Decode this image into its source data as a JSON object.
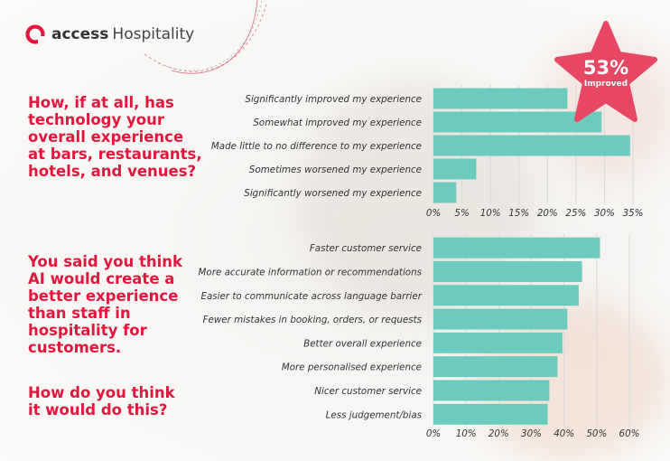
{
  "brand": {
    "word1": "access",
    "word2": "Hospitality"
  },
  "questions": {
    "q1": "How, if at all, has technology your overall experience at bars, restaurants, hotels, and venues?",
    "q2": "You said you think AI would create a better experience than staff in hospitality for customers.",
    "q3": "How do you think it would do this?"
  },
  "badge": {
    "value": "53%",
    "label": "Improved"
  },
  "colors": {
    "bar": "#6ccbbe",
    "accent": "#e3173e",
    "star": "#e84763",
    "text": "#333333"
  },
  "chart_data": [
    {
      "type": "bar",
      "orientation": "horizontal",
      "categories": [
        "Significantly improved my experience",
        "Somewhat improved my experience",
        "Made little to no difference to my experience",
        "Sometimes worsened my experience",
        "Significantly worsened my experience"
      ],
      "values": [
        23.5,
        29.5,
        34.5,
        7.5,
        4
      ],
      "xlim": [
        0,
        35
      ],
      "ticks": [
        0,
        5,
        10,
        15,
        20,
        25,
        30,
        35
      ],
      "tick_labels": [
        "0%",
        "5%",
        "10%",
        "15%",
        "20%",
        "25%",
        "30%",
        "35%"
      ],
      "grid": true
    },
    {
      "type": "bar",
      "orientation": "horizontal",
      "categories": [
        "Faster customer service",
        "More accurate information or recommendations",
        "Easier to communicate across language barrier",
        "Fewer mistakes in booking, orders, or requests",
        "Better overall experience",
        "More personalised experience",
        "Nicer customer service",
        "Less judgement/bias"
      ],
      "values": [
        51,
        45.5,
        44.5,
        41,
        39.5,
        38,
        35.5,
        35
      ],
      "xlim": [
        0,
        60
      ],
      "ticks": [
        0,
        10,
        20,
        30,
        40,
        50,
        60
      ],
      "tick_labels": [
        "0%",
        "10%",
        "20%",
        "30%",
        "40%",
        "50%",
        "60%"
      ],
      "grid": true
    }
  ]
}
